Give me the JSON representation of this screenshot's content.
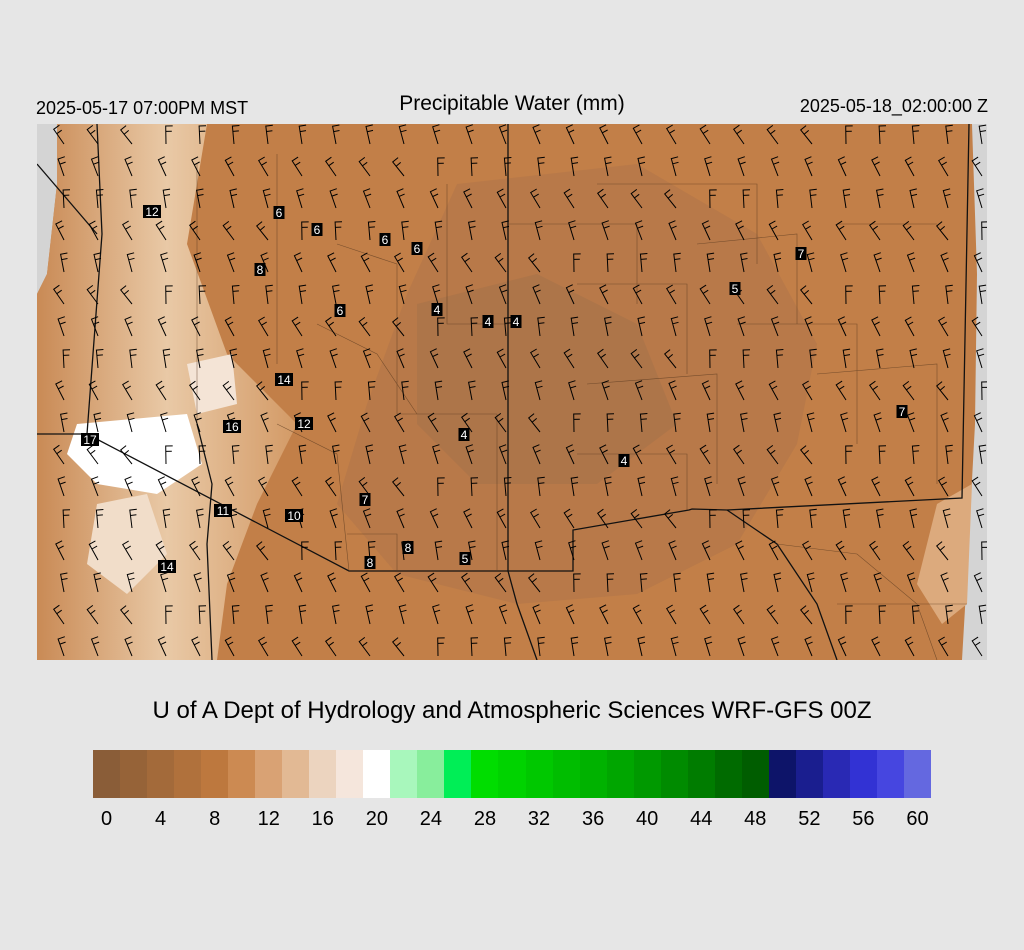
{
  "header": {
    "local_time": "2025-05-17 07:00PM MST",
    "title": "Precipitable Water (mm)",
    "valid_time": "2025-05-18_02:00:00 Z"
  },
  "credit": "U of A Dept of Hydrology and Atmospheric Sciences WRF-GFS 00Z",
  "map": {
    "region": "Southwestern United States",
    "wind_barbs": "wind-barb-icon",
    "station_values": [
      "12",
      "6",
      "6",
      "6",
      "6",
      "8",
      "6",
      "4",
      "4",
      "4",
      "14",
      "16",
      "12",
      "17",
      "4",
      "4",
      "7",
      "11",
      "10",
      "8",
      "8",
      "5",
      "14",
      "7",
      "5",
      "7"
    ]
  },
  "legend": {
    "colors": [
      "#8a5d38",
      "#966338",
      "#a36a3a",
      "#b0713c",
      "#bd783e",
      "#cc8a52",
      "#d9a274",
      "#e2b994",
      "#ecd4bf",
      "#f5e6dc",
      "#ffffff",
      "#a8f7bc",
      "#88ee9c",
      "#00ee56",
      "#00dd00",
      "#00d300",
      "#00c800",
      "#00bd00",
      "#00b200",
      "#00a600",
      "#009900",
      "#008b00",
      "#007c00",
      "#006b00",
      "#005d00",
      "#0d1469",
      "#1a1e8f",
      "#2929b4",
      "#3232d4",
      "#4646e0",
      "#6468e0"
    ],
    "labels": [
      "0",
      "4",
      "8",
      "12",
      "16",
      "20",
      "24",
      "28",
      "32",
      "36",
      "40",
      "44",
      "48",
      "52",
      "56",
      "60"
    ]
  }
}
